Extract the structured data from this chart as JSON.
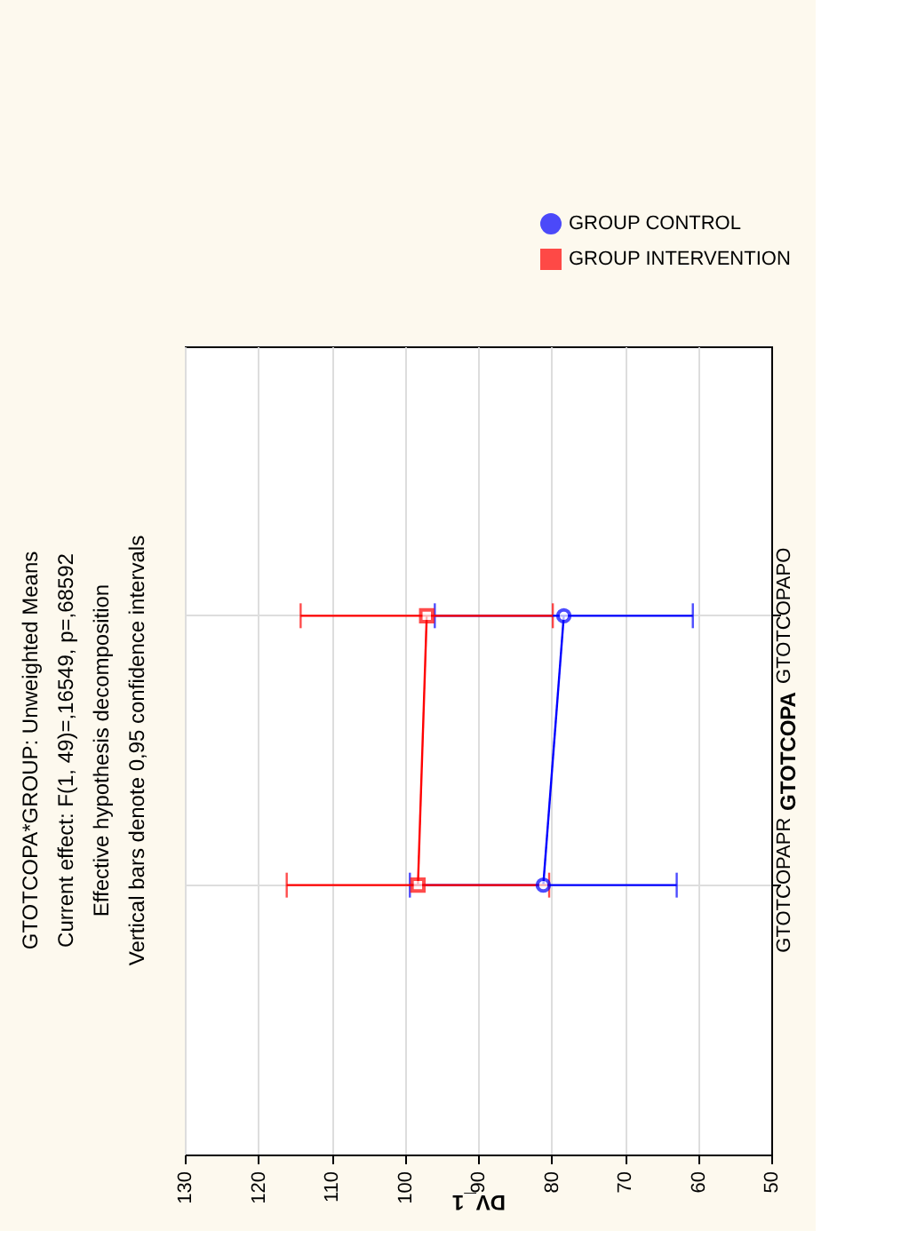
{
  "chart_data": {
    "type": "line",
    "orientation": "horizontal",
    "title": "GTOTCOPA*GROUP: Unweighted Means",
    "subtitle": "Current effect: F(1, 49)=,16549, p=,68592",
    "annotations": [
      "Effective hypothesis decomposition",
      "Vertical bars denote 0,95 confidence intervals"
    ],
    "xlabel": "DV_1",
    "ylabel": "GTOTCOPA",
    "categories": [
      "GTOTCOPAPO",
      "GTOTCOPAPR"
    ],
    "xlim": [
      130,
      50
    ],
    "xticks": [
      130,
      120,
      110,
      100,
      90,
      80,
      70,
      60,
      50
    ],
    "grid": true,
    "legend": "top right",
    "line_style": "solid",
    "series": [
      {
        "name": "GROUP CONTROL",
        "color": "#0000ff",
        "marker": "circle",
        "values": [
          78.3,
          81.1
        ],
        "errors": [
          17.6,
          18.2
        ]
      },
      {
        "name": "GROUP INTERVENTION",
        "color": "#ff0000",
        "marker": "square",
        "values": [
          97.0,
          98.2
        ],
        "errors": [
          17.2,
          17.9
        ]
      }
    ]
  }
}
